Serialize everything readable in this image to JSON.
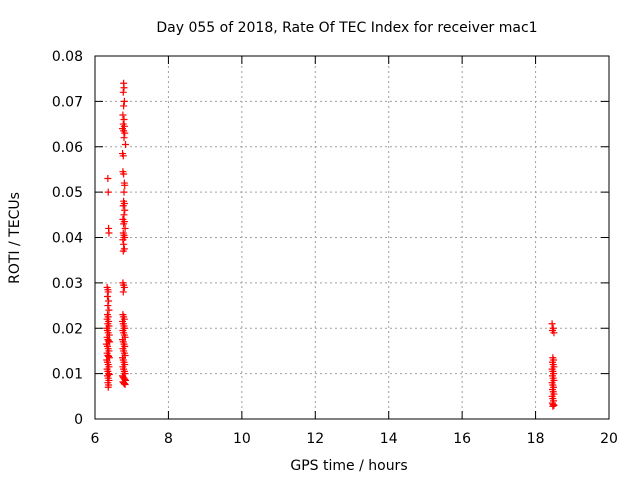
{
  "chart_data": {
    "type": "scatter",
    "title": "Day 055 of 2018, Rate Of TEC Index for receiver mac1",
    "xlabel": "GPS time / hours",
    "ylabel": "ROTI / TECUs",
    "xlim": [
      6,
      20
    ],
    "ylim": [
      0,
      0.08
    ],
    "x_ticks": [
      6,
      8,
      10,
      12,
      14,
      16,
      18,
      20
    ],
    "x_tick_labels": [
      "6",
      "8",
      "10",
      "12",
      "14",
      "16",
      "18",
      "20"
    ],
    "y_ticks": [
      0,
      0.01,
      0.02,
      0.03,
      0.04,
      0.05,
      0.06,
      0.07,
      0.08
    ],
    "y_tick_labels": [
      "0",
      "0.01",
      "0.02",
      "0.03",
      "0.04",
      "0.05",
      "0.06",
      "0.07",
      "0.08"
    ],
    "grid": true,
    "legend": "none",
    "marker": "+",
    "marker_color": "#ff0000",
    "points": [
      [
        6.35,
        0.053
      ],
      [
        6.36,
        0.05
      ],
      [
        6.37,
        0.042
      ],
      [
        6.38,
        0.041
      ],
      [
        6.33,
        0.029
      ],
      [
        6.35,
        0.0285
      ],
      [
        6.36,
        0.028
      ],
      [
        6.34,
        0.027
      ],
      [
        6.37,
        0.026
      ],
      [
        6.35,
        0.025
      ],
      [
        6.38,
        0.024
      ],
      [
        6.34,
        0.023
      ],
      [
        6.36,
        0.0225
      ],
      [
        6.33,
        0.022
      ],
      [
        6.37,
        0.0215
      ],
      [
        6.35,
        0.021
      ],
      [
        6.38,
        0.0205
      ],
      [
        6.32,
        0.02
      ],
      [
        6.34,
        0.0195
      ],
      [
        6.36,
        0.019
      ],
      [
        6.39,
        0.0185
      ],
      [
        6.33,
        0.018
      ],
      [
        6.35,
        0.0175
      ],
      [
        6.37,
        0.0172
      ],
      [
        6.4,
        0.017
      ],
      [
        6.31,
        0.0165
      ],
      [
        6.34,
        0.016
      ],
      [
        6.36,
        0.0155
      ],
      [
        6.38,
        0.015
      ],
      [
        6.33,
        0.0145
      ],
      [
        6.35,
        0.014
      ],
      [
        6.37,
        0.0138
      ],
      [
        6.39,
        0.0135
      ],
      [
        6.32,
        0.013
      ],
      [
        6.34,
        0.0125
      ],
      [
        6.36,
        0.012
      ],
      [
        6.38,
        0.0115
      ],
      [
        6.33,
        0.011
      ],
      [
        6.35,
        0.0105
      ],
      [
        6.37,
        0.01
      ],
      [
        6.39,
        0.0098
      ],
      [
        6.34,
        0.0095
      ],
      [
        6.36,
        0.009
      ],
      [
        6.38,
        0.0085
      ],
      [
        6.35,
        0.008
      ],
      [
        6.37,
        0.0075
      ],
      [
        6.36,
        0.007
      ],
      [
        6.78,
        0.074
      ],
      [
        6.79,
        0.073
      ],
      [
        6.77,
        0.072
      ],
      [
        6.8,
        0.07
      ],
      [
        6.78,
        0.069
      ],
      [
        6.76,
        0.067
      ],
      [
        6.79,
        0.066
      ],
      [
        6.77,
        0.065
      ],
      [
        6.8,
        0.0645
      ],
      [
        6.75,
        0.064
      ],
      [
        6.78,
        0.0635
      ],
      [
        6.81,
        0.063
      ],
      [
        6.79,
        0.062
      ],
      [
        6.83,
        0.0605
      ],
      [
        6.75,
        0.0585
      ],
      [
        6.77,
        0.058
      ],
      [
        6.76,
        0.0545
      ],
      [
        6.78,
        0.054
      ],
      [
        6.8,
        0.052
      ],
      [
        6.81,
        0.0515
      ],
      [
        6.79,
        0.05
      ],
      [
        6.78,
        0.048
      ],
      [
        6.8,
        0.0475
      ],
      [
        6.77,
        0.047
      ],
      [
        6.81,
        0.046
      ],
      [
        6.79,
        0.045
      ],
      [
        6.76,
        0.044
      ],
      [
        6.8,
        0.0435
      ],
      [
        6.78,
        0.043
      ],
      [
        6.82,
        0.042
      ],
      [
        6.77,
        0.041
      ],
      [
        6.79,
        0.0405
      ],
      [
        6.81,
        0.04
      ],
      [
        6.76,
        0.0395
      ],
      [
        6.78,
        0.0385
      ],
      [
        6.8,
        0.0375
      ],
      [
        6.77,
        0.037
      ],
      [
        6.76,
        0.03
      ],
      [
        6.78,
        0.0295
      ],
      [
        6.8,
        0.029
      ],
      [
        6.77,
        0.028
      ],
      [
        6.76,
        0.023
      ],
      [
        6.78,
        0.0225
      ],
      [
        6.8,
        0.022
      ],
      [
        6.75,
        0.0215
      ],
      [
        6.77,
        0.021
      ],
      [
        6.79,
        0.0205
      ],
      [
        6.81,
        0.02
      ],
      [
        6.76,
        0.0195
      ],
      [
        6.78,
        0.019
      ],
      [
        6.8,
        0.0185
      ],
      [
        6.82,
        0.018
      ],
      [
        6.75,
        0.0175
      ],
      [
        6.77,
        0.017
      ],
      [
        6.79,
        0.0165
      ],
      [
        6.81,
        0.016
      ],
      [
        6.76,
        0.0155
      ],
      [
        6.78,
        0.015
      ],
      [
        6.8,
        0.0145
      ],
      [
        6.82,
        0.014
      ],
      [
        6.75,
        0.0135
      ],
      [
        6.77,
        0.013
      ],
      [
        6.79,
        0.0125
      ],
      [
        6.81,
        0.012
      ],
      [
        6.76,
        0.0115
      ],
      [
        6.78,
        0.011
      ],
      [
        6.8,
        0.0105
      ],
      [
        6.82,
        0.01
      ],
      [
        6.75,
        0.0095
      ],
      [
        6.77,
        0.0092
      ],
      [
        6.79,
        0.009
      ],
      [
        6.81,
        0.0087
      ],
      [
        6.83,
        0.0085
      ],
      [
        6.76,
        0.0082
      ],
      [
        6.78,
        0.008
      ],
      [
        6.8,
        0.0078
      ],
      [
        6.82,
        0.0076
      ],
      [
        18.45,
        0.021
      ],
      [
        18.48,
        0.02
      ],
      [
        18.46,
        0.0195
      ],
      [
        18.5,
        0.019
      ],
      [
        18.47,
        0.0135
      ],
      [
        18.49,
        0.013
      ],
      [
        18.46,
        0.0125
      ],
      [
        18.48,
        0.012
      ],
      [
        18.5,
        0.0115
      ],
      [
        18.45,
        0.011
      ],
      [
        18.47,
        0.0105
      ],
      [
        18.49,
        0.01
      ],
      [
        18.46,
        0.0095
      ],
      [
        18.48,
        0.009
      ],
      [
        18.5,
        0.0085
      ],
      [
        18.45,
        0.008
      ],
      [
        18.47,
        0.0075
      ],
      [
        18.49,
        0.007
      ],
      [
        18.46,
        0.0065
      ],
      [
        18.48,
        0.006
      ],
      [
        18.5,
        0.0055
      ],
      [
        18.45,
        0.005
      ],
      [
        18.47,
        0.0045
      ],
      [
        18.49,
        0.004
      ],
      [
        18.46,
        0.0035
      ],
      [
        18.48,
        0.0032
      ],
      [
        18.5,
        0.003
      ],
      [
        18.47,
        0.0028
      ]
    ]
  }
}
